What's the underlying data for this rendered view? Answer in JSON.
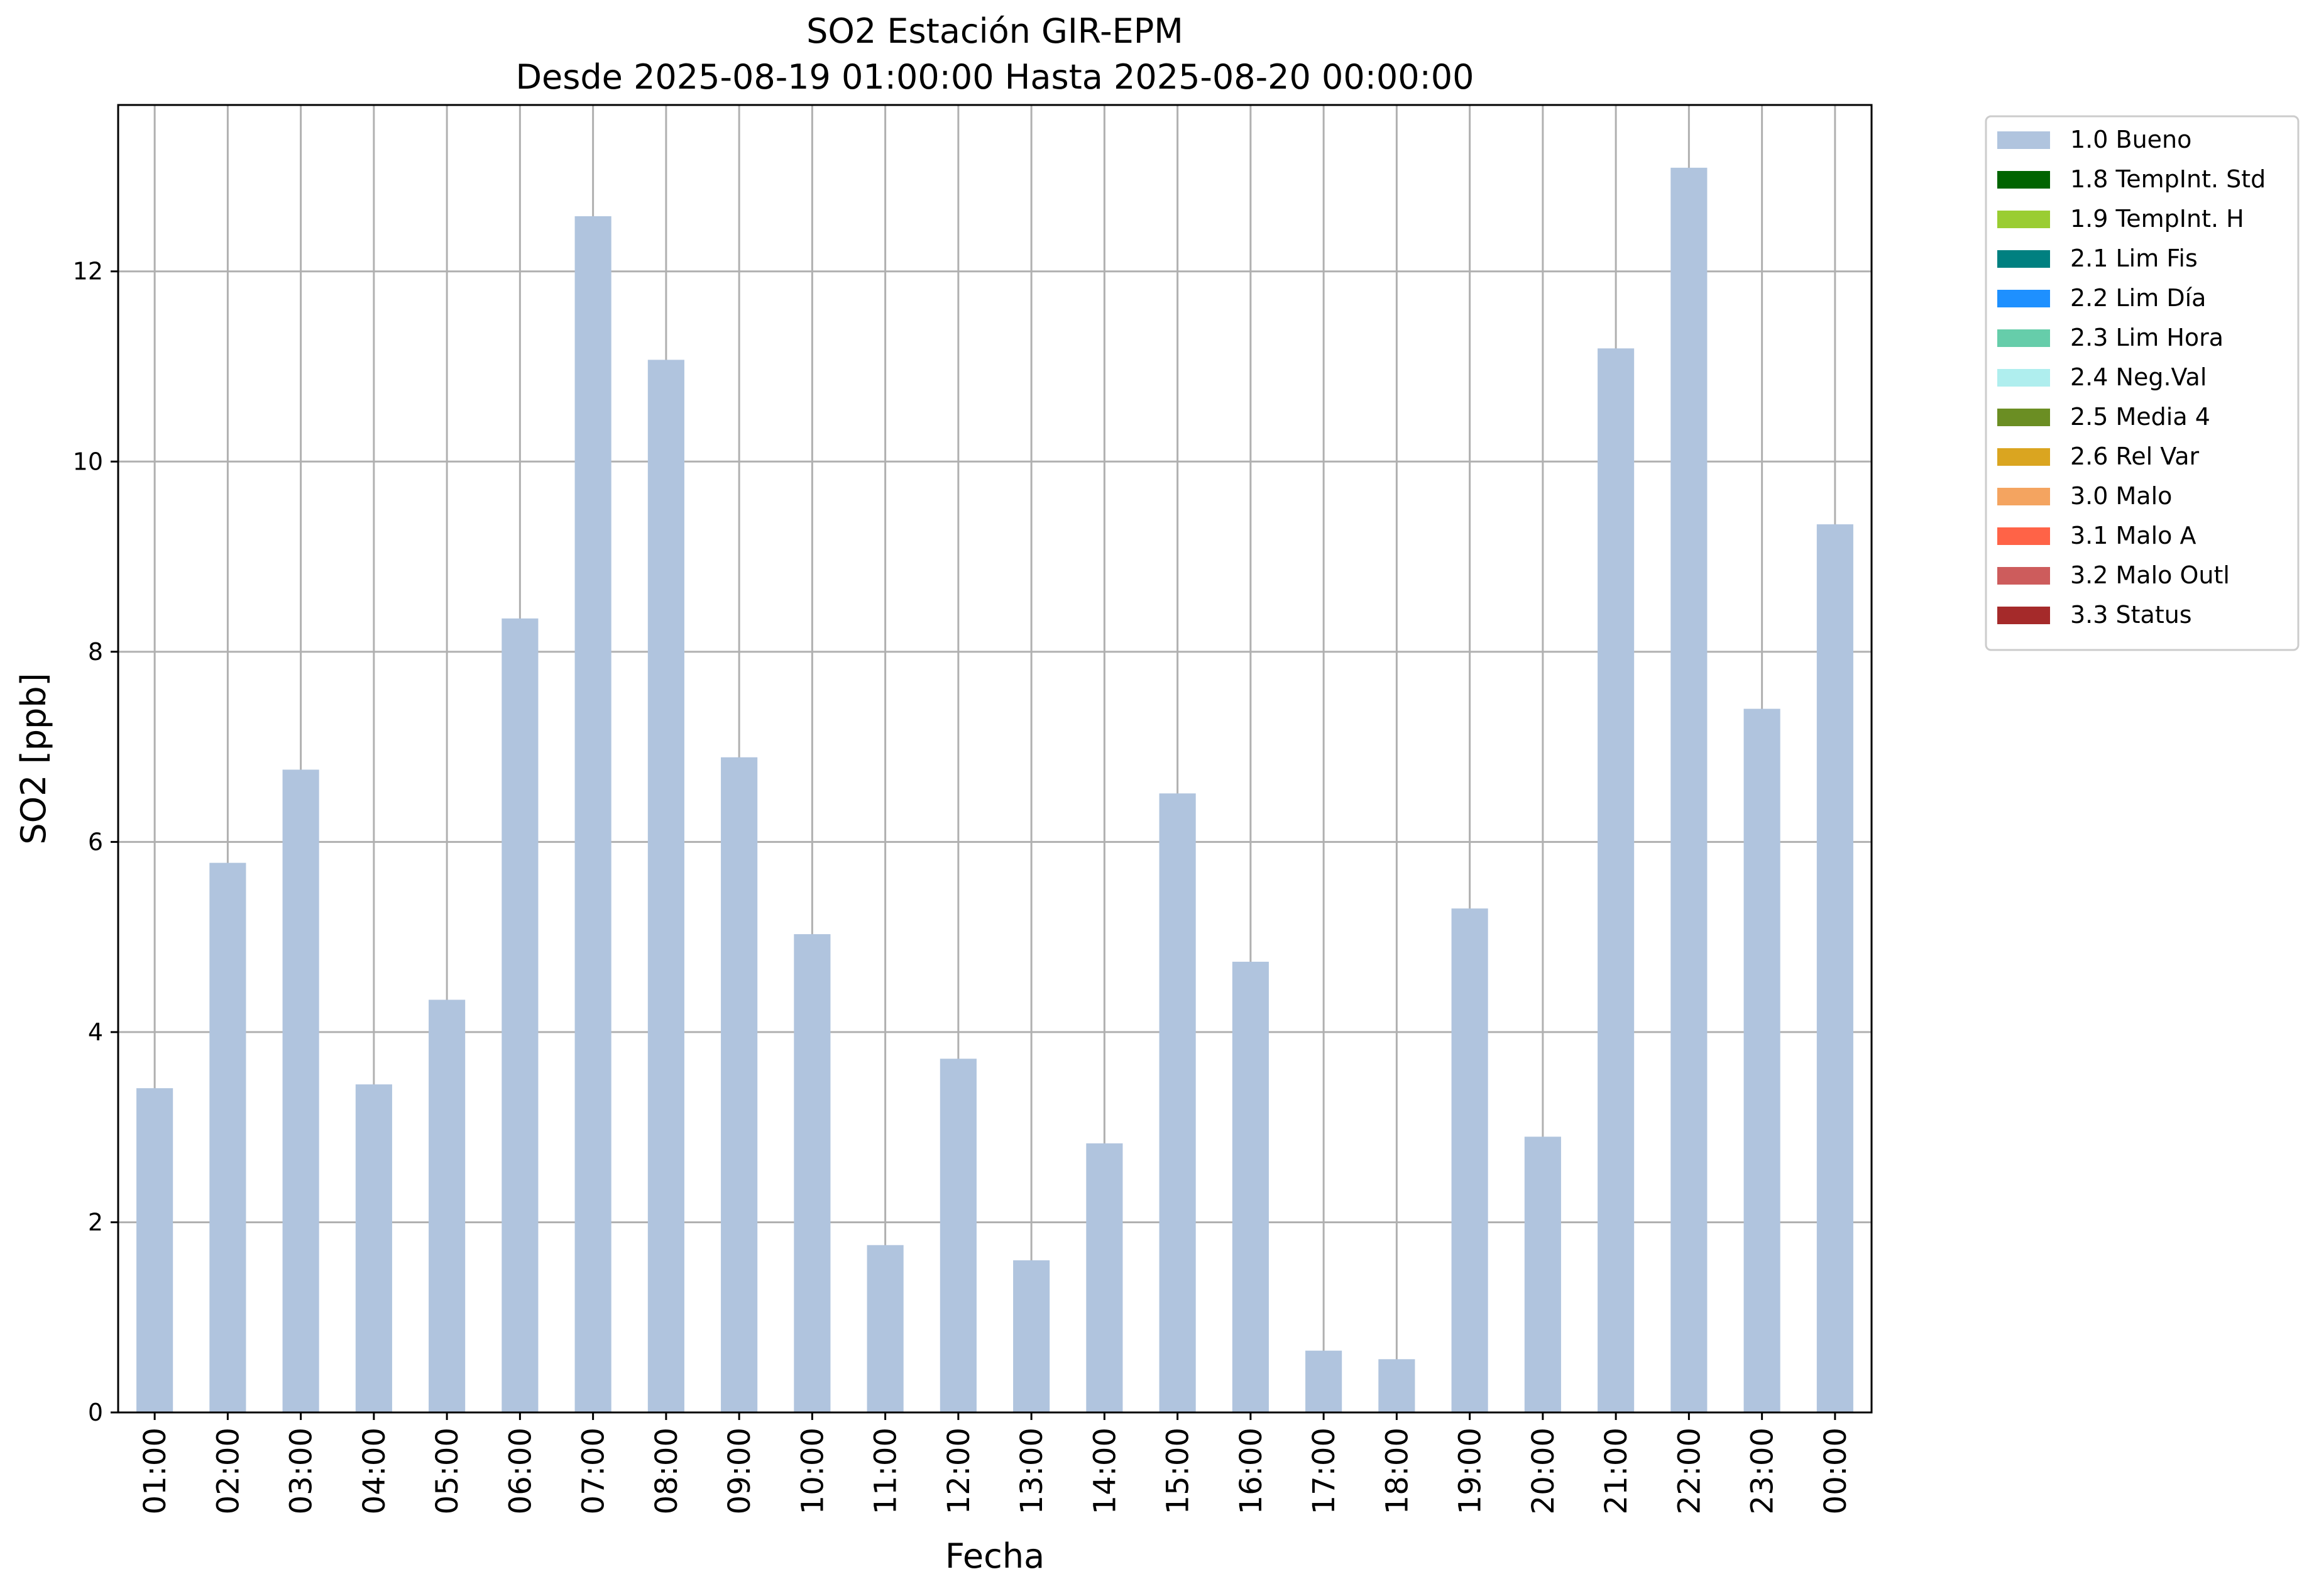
{
  "chart_data": {
    "type": "bar",
    "title": "SO2 Estación GIR-EPM",
    "subtitle": "Desde 2025-08-19 01:00:00 Hasta 2025-08-20 00:00:00",
    "xlabel": "Fecha",
    "ylabel": "SO2 [ppb]",
    "ylim": [
      0,
      13.75
    ],
    "yticks": [
      0,
      2,
      4,
      6,
      8,
      10,
      12
    ],
    "ytick_labels": [
      "0",
      "2",
      "4",
      "6",
      "8",
      "10",
      "12"
    ],
    "grid": true,
    "legend_position": "outside-top-right",
    "categories": [
      "01:00",
      "02:00",
      "03:00",
      "04:00",
      "05:00",
      "06:00",
      "07:00",
      "08:00",
      "09:00",
      "10:00",
      "11:00",
      "12:00",
      "13:00",
      "14:00",
      "15:00",
      "16:00",
      "17:00",
      "18:00",
      "19:00",
      "20:00",
      "21:00",
      "22:00",
      "23:00",
      "00:00"
    ],
    "series": [
      {
        "name": "1.0 Bueno",
        "color": "#b0c4de",
        "values": [
          3.41,
          5.78,
          6.76,
          3.45,
          4.34,
          8.35,
          12.58,
          11.07,
          6.89,
          5.03,
          1.76,
          3.72,
          1.6,
          2.83,
          6.51,
          4.74,
          0.65,
          0.56,
          5.3,
          2.9,
          11.19,
          13.09,
          7.4,
          9.34
        ]
      }
    ],
    "legend": [
      {
        "label": "1.0 Bueno",
        "color": "#b0c4de"
      },
      {
        "label": "1.8 TempInt. Std",
        "color": "#006400"
      },
      {
        "label": "1.9 TempInt. H",
        "color": "#9acd32"
      },
      {
        "label": "2.1 Lim Fis",
        "color": "#008080"
      },
      {
        "label": "2.2 Lim Día",
        "color": "#1e90ff"
      },
      {
        "label": "2.3 Lim Hora",
        "color": "#66cdaa"
      },
      {
        "label": "2.4 Neg.Val",
        "color": "#afeeee"
      },
      {
        "label": "2.5 Media 4",
        "color": "#6b8e23"
      },
      {
        "label": "2.6 Rel Var",
        "color": "#daa520"
      },
      {
        "label": "3.0 Malo",
        "color": "#f4a460"
      },
      {
        "label": "3.1 Malo A",
        "color": "#ff6347"
      },
      {
        "label": "3.2 Malo Outl",
        "color": "#cd5c5c"
      },
      {
        "label": "3.3 Status",
        "color": "#a52a2a"
      }
    ]
  }
}
